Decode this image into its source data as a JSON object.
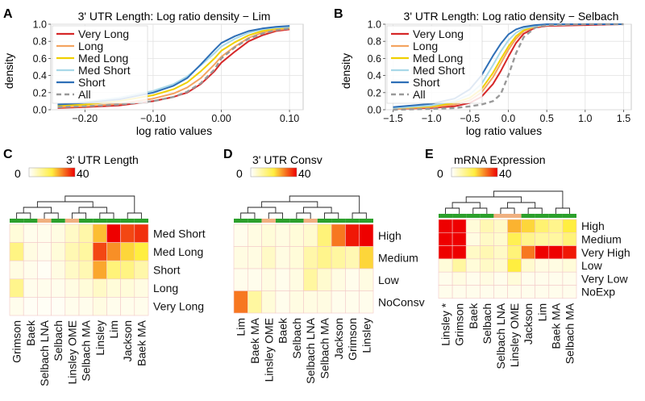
{
  "colors": {
    "very_long": "#d62728",
    "long": "#f4a460",
    "med_long": "#f0d000",
    "med_short": "#a8d8e8",
    "short": "#2e6fb7",
    "all": "#999999",
    "dendro_green": "#2ca02c",
    "dendro_peach": "#f0b080",
    "heat_low": "#ffffff",
    "heat_mid": "#ffee40",
    "heat_high": "#ee0000"
  },
  "chart_data": [
    {
      "panel": "A",
      "type": "line",
      "title": "3' UTR Length: Log ratio density − Lim",
      "xlabel": "log ratio values",
      "ylabel": "density",
      "xlim": [
        -0.25,
        0.12
      ],
      "ylim": [
        0,
        1.0
      ],
      "xticks": [
        -0.2,
        -0.1,
        0.0,
        0.1
      ],
      "xtick_labels": [
        "−0.20",
        "−0.10",
        "0.00",
        "0.10"
      ],
      "yticks": [
        0.0,
        0.2,
        0.4,
        0.6,
        0.8,
        1.0
      ],
      "ytick_labels": [
        "0.0",
        "0.2",
        "0.4",
        "0.6",
        "0.8",
        "1.0"
      ],
      "grid": true,
      "legend_position": "top-left",
      "series": [
        {
          "name": "Very Long",
          "color_key": "very_long",
          "dashed": false,
          "x": [
            -0.24,
            -0.2,
            -0.15,
            -0.1,
            -0.07,
            -0.05,
            -0.03,
            -0.01,
            0.0,
            0.02,
            0.04,
            0.06,
            0.08,
            0.1
          ],
          "y": [
            0.02,
            0.03,
            0.05,
            0.1,
            0.15,
            0.2,
            0.3,
            0.45,
            0.55,
            0.68,
            0.8,
            0.87,
            0.92,
            0.94
          ]
        },
        {
          "name": "Long",
          "color_key": "long",
          "dashed": false,
          "x": [
            -0.24,
            -0.2,
            -0.15,
            -0.1,
            -0.07,
            -0.05,
            -0.03,
            -0.01,
            0.0,
            0.02,
            0.04,
            0.06,
            0.08,
            0.1
          ],
          "y": [
            0.03,
            0.04,
            0.07,
            0.13,
            0.19,
            0.26,
            0.37,
            0.53,
            0.62,
            0.74,
            0.84,
            0.9,
            0.93,
            0.95
          ]
        },
        {
          "name": "Med Long",
          "color_key": "med_long",
          "dashed": false,
          "x": [
            -0.24,
            -0.2,
            -0.15,
            -0.1,
            -0.07,
            -0.05,
            -0.03,
            -0.01,
            0.0,
            0.02,
            0.04,
            0.06,
            0.08,
            0.1
          ],
          "y": [
            0.05,
            0.06,
            0.1,
            0.17,
            0.24,
            0.32,
            0.45,
            0.6,
            0.69,
            0.79,
            0.87,
            0.92,
            0.95,
            0.96
          ]
        },
        {
          "name": "Med Short",
          "color_key": "med_short",
          "dashed": false,
          "x": [
            -0.24,
            -0.2,
            -0.15,
            -0.1,
            -0.07,
            -0.05,
            -0.03,
            -0.01,
            0.0,
            0.02,
            0.04,
            0.06,
            0.08,
            0.1
          ],
          "y": [
            0.07,
            0.09,
            0.14,
            0.22,
            0.3,
            0.39,
            0.52,
            0.66,
            0.74,
            0.83,
            0.9,
            0.94,
            0.96,
            0.97
          ]
        },
        {
          "name": "Short",
          "color_key": "short",
          "dashed": false,
          "x": [
            -0.24,
            -0.2,
            -0.15,
            -0.1,
            -0.07,
            -0.05,
            -0.03,
            -0.01,
            0.0,
            0.02,
            0.04,
            0.06,
            0.08,
            0.1
          ],
          "y": [
            0.06,
            0.08,
            0.12,
            0.2,
            0.28,
            0.37,
            0.53,
            0.7,
            0.78,
            0.86,
            0.92,
            0.95,
            0.97,
            0.98
          ]
        },
        {
          "name": "All",
          "color_key": "all",
          "dashed": true,
          "x": [
            -0.24,
            -0.2,
            -0.15,
            -0.1,
            -0.07,
            -0.05,
            -0.03,
            -0.01,
            0.0,
            0.02,
            0.04,
            0.06,
            0.08,
            0.1
          ],
          "y": [
            0.03,
            0.04,
            0.06,
            0.1,
            0.15,
            0.21,
            0.31,
            0.47,
            0.6,
            0.73,
            0.83,
            0.89,
            0.93,
            0.95
          ]
        }
      ]
    },
    {
      "panel": "B",
      "type": "line",
      "title": "3' UTR Length: Log ratio density − Selbach",
      "xlabel": "log ratio values",
      "ylabel": "density",
      "xlim": [
        -1.6,
        1.6
      ],
      "ylim": [
        0,
        1.0
      ],
      "xticks": [
        -1.5,
        -1.0,
        -0.5,
        0.0,
        0.5,
        1.0,
        1.5
      ],
      "xtick_labels": [
        "−1.5",
        "−1.0",
        "−0.5",
        "0.0",
        "0.5",
        "1.0",
        "1.5"
      ],
      "yticks": [
        0.0,
        0.2,
        0.4,
        0.6,
        0.8,
        1.0
      ],
      "ytick_labels": [
        "0.0",
        "0.2",
        "0.4",
        "0.6",
        "0.8",
        "1.0"
      ],
      "grid": true,
      "legend_position": "top-left",
      "series": [
        {
          "name": "Very Long",
          "color_key": "very_long",
          "dashed": false,
          "x": [
            -1.5,
            -1.0,
            -0.7,
            -0.5,
            -0.35,
            -0.2,
            -0.1,
            0.0,
            0.1,
            0.2,
            0.35,
            0.5,
            1.0,
            1.5
          ],
          "y": [
            0.01,
            0.02,
            0.04,
            0.08,
            0.15,
            0.3,
            0.45,
            0.62,
            0.78,
            0.89,
            0.96,
            0.98,
            0.99,
            1.0
          ]
        },
        {
          "name": "Long",
          "color_key": "long",
          "dashed": false,
          "x": [
            -1.5,
            -1.0,
            -0.7,
            -0.5,
            -0.35,
            -0.2,
            -0.1,
            0.0,
            0.1,
            0.2,
            0.35,
            0.5,
            1.0,
            1.5
          ],
          "y": [
            0.01,
            0.03,
            0.06,
            0.11,
            0.2,
            0.38,
            0.54,
            0.7,
            0.83,
            0.92,
            0.97,
            0.99,
            1.0,
            1.0
          ]
        },
        {
          "name": "Med Long",
          "color_key": "med_long",
          "dashed": false,
          "x": [
            -1.5,
            -1.0,
            -0.7,
            -0.5,
            -0.35,
            -0.2,
            -0.1,
            0.0,
            0.1,
            0.2,
            0.35,
            0.5,
            1.0,
            1.5
          ],
          "y": [
            0.02,
            0.04,
            0.08,
            0.14,
            0.24,
            0.43,
            0.59,
            0.74,
            0.86,
            0.93,
            0.98,
            0.99,
            1.0,
            1.0
          ]
        },
        {
          "name": "Med Short",
          "color_key": "med_short",
          "dashed": false,
          "x": [
            -1.5,
            -1.0,
            -0.7,
            -0.5,
            -0.35,
            -0.2,
            -0.1,
            0.0,
            0.1,
            0.2,
            0.35,
            0.5,
            1.0,
            1.5
          ],
          "y": [
            0.02,
            0.05,
            0.1,
            0.18,
            0.3,
            0.52,
            0.68,
            0.81,
            0.9,
            0.95,
            0.98,
            0.99,
            1.0,
            1.0
          ]
        },
        {
          "name": "Short",
          "color_key": "short",
          "dashed": false,
          "x": [
            -1.5,
            -1.0,
            -0.7,
            -0.5,
            -0.35,
            -0.2,
            -0.1,
            0.0,
            0.1,
            0.2,
            0.35,
            0.5,
            1.0,
            1.5
          ],
          "y": [
            0.03,
            0.07,
            0.13,
            0.24,
            0.4,
            0.63,
            0.77,
            0.88,
            0.94,
            0.97,
            0.99,
            1.0,
            1.0,
            1.0
          ]
        },
        {
          "name": "All",
          "color_key": "all",
          "dashed": true,
          "x": [
            -1.5,
            -1.0,
            -0.7,
            -0.5,
            -0.35,
            -0.2,
            -0.1,
            0.0,
            0.1,
            0.2,
            0.35,
            0.5,
            1.0,
            1.5
          ],
          "y": [
            0.0,
            0.01,
            0.02,
            0.04,
            0.06,
            0.1,
            0.18,
            0.4,
            0.66,
            0.85,
            0.96,
            0.99,
            1.0,
            1.0
          ]
        }
      ]
    },
    {
      "panel": "C",
      "type": "heatmap",
      "title": "3' UTR Length",
      "scale_min_label": "0",
      "scale_max_label": "40",
      "vmin": 0,
      "vmax": 40,
      "columns": [
        "Grimson",
        "Baek",
        "Selbach LNA",
        "Selbach",
        "Linsley OME",
        "Selbach MA",
        "Linsley",
        "Lim",
        "Jackson",
        "Baek MA"
      ],
      "rows": [
        "Med Short",
        "Med Long",
        "Short",
        "Long",
        "Very Long"
      ],
      "column_group_colors": [
        "dendro_green",
        "dendro_green",
        "dendro_peach",
        "dendro_green",
        "dendro_peach",
        "dendro_green",
        "dendro_green",
        "dendro_green",
        "dendro_green",
        "dendro_green"
      ],
      "values": [
        [
          4,
          2,
          2,
          3,
          6,
          9,
          24,
          40,
          34,
          36
        ],
        [
          13,
          3,
          2,
          4,
          8,
          10,
          34,
          28,
          22,
          20
        ],
        [
          3,
          2,
          1,
          3,
          6,
          8,
          26,
          14,
          13,
          9
        ],
        [
          12,
          2,
          2,
          2,
          3,
          4,
          6,
          4,
          4,
          3
        ],
        [
          2,
          1,
          1,
          1,
          2,
          2,
          3,
          2,
          2,
          2
        ]
      ]
    },
    {
      "panel": "D",
      "type": "heatmap",
      "title": "3' UTR Consv",
      "scale_min_label": "0",
      "scale_max_label": "40",
      "vmin": 0,
      "vmax": 40,
      "columns": [
        "Lim",
        "Baek MA",
        "Linsley OME",
        "Baek",
        "Selbach",
        "Selbach LNA",
        "Selbach MA",
        "Jackson",
        "Grimson",
        "Linsley"
      ],
      "rows": [
        "High",
        "Medium",
        "Low",
        "NoConsv"
      ],
      "column_group_colors": [
        "dendro_green",
        "dendro_green",
        "dendro_peach",
        "dendro_green",
        "dendro_green",
        "dendro_peach",
        "dendro_green",
        "dendro_green",
        "dendro_green",
        "dendro_green"
      ],
      "values": [
        [
          2,
          3,
          4,
          3,
          4,
          5,
          14,
          30,
          38,
          40
        ],
        [
          3,
          3,
          6,
          3,
          4,
          9,
          12,
          10,
          8,
          22
        ],
        [
          2,
          2,
          3,
          2,
          3,
          10,
          5,
          3,
          2,
          3
        ],
        [
          30,
          10,
          4,
          2,
          3,
          3,
          3,
          2,
          2,
          2
        ]
      ]
    },
    {
      "panel": "E",
      "type": "heatmap",
      "title": "mRNA Expression",
      "scale_min_label": "0",
      "scale_max_label": "40",
      "vmin": 0,
      "vmax": 40,
      "columns": [
        "Linsley *",
        "Grimson",
        "Baek",
        "Selbach",
        "Selbach LNA",
        "Linsley OME",
        "Jackson",
        "Lim",
        "Baek MA",
        "Selbach MA"
      ],
      "rows": [
        "High",
        "Medium",
        "Very High",
        "Low",
        "Very Low",
        "NoExp"
      ],
      "column_group_colors": [
        "dendro_green",
        "dendro_green",
        "dendro_green",
        "dendro_green",
        "dendro_peach",
        "dendro_peach",
        "dendro_green",
        "dendro_green",
        "dendro_green",
        "dendro_green"
      ],
      "values": [
        [
          40,
          40,
          4,
          8,
          6,
          25,
          22,
          15,
          12,
          20
        ],
        [
          40,
          40,
          3,
          6,
          5,
          18,
          12,
          10,
          10,
          14
        ],
        [
          40,
          40,
          6,
          8,
          6,
          14,
          30,
          40,
          40,
          38
        ],
        [
          4,
          10,
          4,
          6,
          5,
          20,
          5,
          3,
          3,
          4
        ],
        [
          2,
          3,
          2,
          3,
          2,
          4,
          2,
          2,
          2,
          2
        ],
        [
          2,
          2,
          2,
          2,
          2,
          2,
          2,
          2,
          2,
          2
        ]
      ]
    }
  ]
}
